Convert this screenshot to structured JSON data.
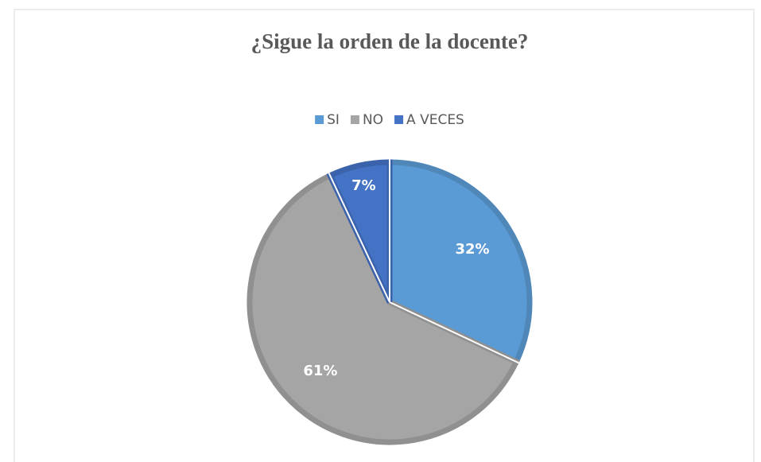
{
  "chart_data": {
    "type": "pie",
    "title": "¿Sigue la orden de la docente?",
    "categories": [
      "SI",
      "NO",
      "A VECES"
    ],
    "values": [
      32,
      61,
      7
    ],
    "value_labels": [
      "32%",
      "61%",
      "7%"
    ],
    "colors": [
      "#5b9bd5",
      "#a5a5a5",
      "#4472c4"
    ],
    "legend": "top"
  }
}
